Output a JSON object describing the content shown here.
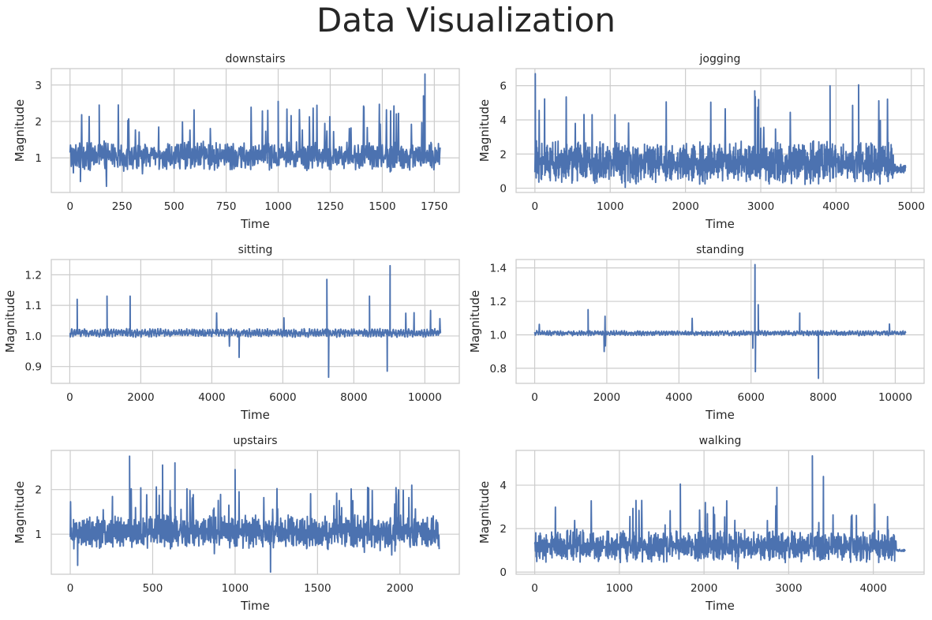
{
  "figure": {
    "title": "Data Visualization",
    "line_color": "#4c72b0",
    "grid": true,
    "style": "whitegrid"
  },
  "chart_data": [
    {
      "type": "line",
      "title": "downstairs",
      "xlabel": "Time",
      "ylabel": "Magnitude",
      "n": 1780,
      "xlim": [
        -90,
        1870
      ],
      "ylim": [
        0.05,
        3.45
      ],
      "xticks": [
        0,
        250,
        500,
        750,
        1000,
        1250,
        1500,
        1750
      ],
      "yticks": [
        1,
        2,
        3
      ],
      "baseline": 1.05,
      "noise": 0.32,
      "spike_rate": 0.045,
      "spike_max": 2.5,
      "peaks": [
        {
          "x": 1705,
          "y": 3.3
        },
        {
          "x": 1698,
          "y": 2.7
        },
        {
          "x": 1000,
          "y": 2.55
        },
        {
          "x": 140,
          "y": 2.45
        }
      ],
      "troughs": [
        {
          "x": 175,
          "y": 0.22
        },
        {
          "x": 50,
          "y": 0.35
        }
      ]
    },
    {
      "type": "line",
      "title": "jogging",
      "xlabel": "Time",
      "ylabel": "Magnitude",
      "n": 4930,
      "xlim": [
        -250,
        5170
      ],
      "ylim": [
        -0.25,
        7.0
      ],
      "xticks": [
        0,
        1000,
        2000,
        3000,
        4000,
        5000
      ],
      "yticks": [
        0,
        2,
        4,
        6
      ],
      "baseline": 1.5,
      "noise": 1.0,
      "spike_rate": 0.02,
      "spike_max": 5.6,
      "tail": {
        "from": 4770,
        "y": 1.15,
        "noise": 0.3
      },
      "peaks": [
        {
          "x": 5,
          "y": 6.7
        },
        {
          "x": 4300,
          "y": 6.05
        },
        {
          "x": 3920,
          "y": 6.0
        },
        {
          "x": 2920,
          "y": 5.7
        }
      ],
      "troughs": [
        {
          "x": 1200,
          "y": 0.05
        }
      ]
    },
    {
      "type": "line",
      "title": "sitting",
      "xlabel": "Time",
      "ylabel": "Magnitude",
      "n": 10450,
      "xlim": [
        -520,
        10970
      ],
      "ylim": [
        0.845,
        1.25
      ],
      "xticks": [
        0,
        2000,
        4000,
        6000,
        8000,
        10000
      ],
      "yticks": [
        0.9,
        1.0,
        1.1,
        1.2
      ],
      "baseline": 1.01,
      "noise": 0.011,
      "spike_rate": 0.003,
      "spike_max": 1.1,
      "peaks": [
        {
          "x": 9020,
          "y": 1.23
        },
        {
          "x": 7240,
          "y": 1.185
        },
        {
          "x": 1050,
          "y": 1.13
        },
        {
          "x": 1700,
          "y": 1.13
        },
        {
          "x": 210,
          "y": 1.12
        },
        {
          "x": 8440,
          "y": 1.13
        }
      ],
      "troughs": [
        {
          "x": 7290,
          "y": 0.865
        },
        {
          "x": 8940,
          "y": 0.885
        },
        {
          "x": 4770,
          "y": 0.93
        }
      ]
    },
    {
      "type": "line",
      "title": "standing",
      "xlabel": "Time",
      "ylabel": "Magnitude",
      "n": 10290,
      "xlim": [
        -515,
        10800
      ],
      "ylim": [
        0.71,
        1.45
      ],
      "xticks": [
        0,
        2000,
        4000,
        6000,
        8000,
        10000
      ],
      "yticks": [
        0.8,
        1.0,
        1.2,
        1.4
      ],
      "baseline": 1.01,
      "noise": 0.012,
      "spike_rate": 0.0025,
      "spike_max": 1.12,
      "peaks": [
        {
          "x": 6110,
          "y": 1.42
        },
        {
          "x": 6200,
          "y": 1.18
        },
        {
          "x": 1480,
          "y": 1.15
        },
        {
          "x": 7350,
          "y": 1.13
        }
      ],
      "troughs": [
        {
          "x": 7870,
          "y": 0.74
        },
        {
          "x": 6120,
          "y": 0.78
        },
        {
          "x": 6050,
          "y": 0.92
        }
      ]
    },
    {
      "type": "line",
      "title": "upstairs",
      "xlabel": "Time",
      "ylabel": "Magnitude",
      "n": 2240,
      "xlim": [
        -115,
        2360
      ],
      "ylim": [
        0.1,
        2.88
      ],
      "xticks": [
        0,
        500,
        1000,
        1500,
        2000
      ],
      "yticks": [
        1,
        2
      ],
      "baseline": 1.05,
      "noise": 0.3,
      "spike_rate": 0.04,
      "spike_max": 2.1,
      "peaks": [
        {
          "x": 360,
          "y": 2.75
        },
        {
          "x": 635,
          "y": 2.6
        },
        {
          "x": 1000,
          "y": 2.45
        },
        {
          "x": 560,
          "y": 2.55
        }
      ],
      "troughs": [
        {
          "x": 1215,
          "y": 0.15
        },
        {
          "x": 45,
          "y": 0.3
        }
      ]
    },
    {
      "type": "line",
      "title": "walking",
      "xlabel": "Time",
      "ylabel": "Magnitude",
      "n": 4380,
      "xlim": [
        -220,
        4600
      ],
      "ylim": [
        -0.1,
        5.6
      ],
      "xticks": [
        0,
        1000,
        2000,
        3000,
        4000
      ],
      "yticks": [
        0,
        2,
        4
      ],
      "baseline": 1.2,
      "noise": 0.6,
      "spike_rate": 0.03,
      "spike_max": 3.3,
      "tail": {
        "from": 4270,
        "y": 1.0,
        "noise": 0.05
      },
      "peaks": [
        {
          "x": 3280,
          "y": 5.35
        },
        {
          "x": 3410,
          "y": 4.4
        },
        {
          "x": 1720,
          "y": 4.05
        },
        {
          "x": 2860,
          "y": 3.9
        }
      ],
      "troughs": [
        {
          "x": 2400,
          "y": 0.15
        }
      ]
    }
  ]
}
